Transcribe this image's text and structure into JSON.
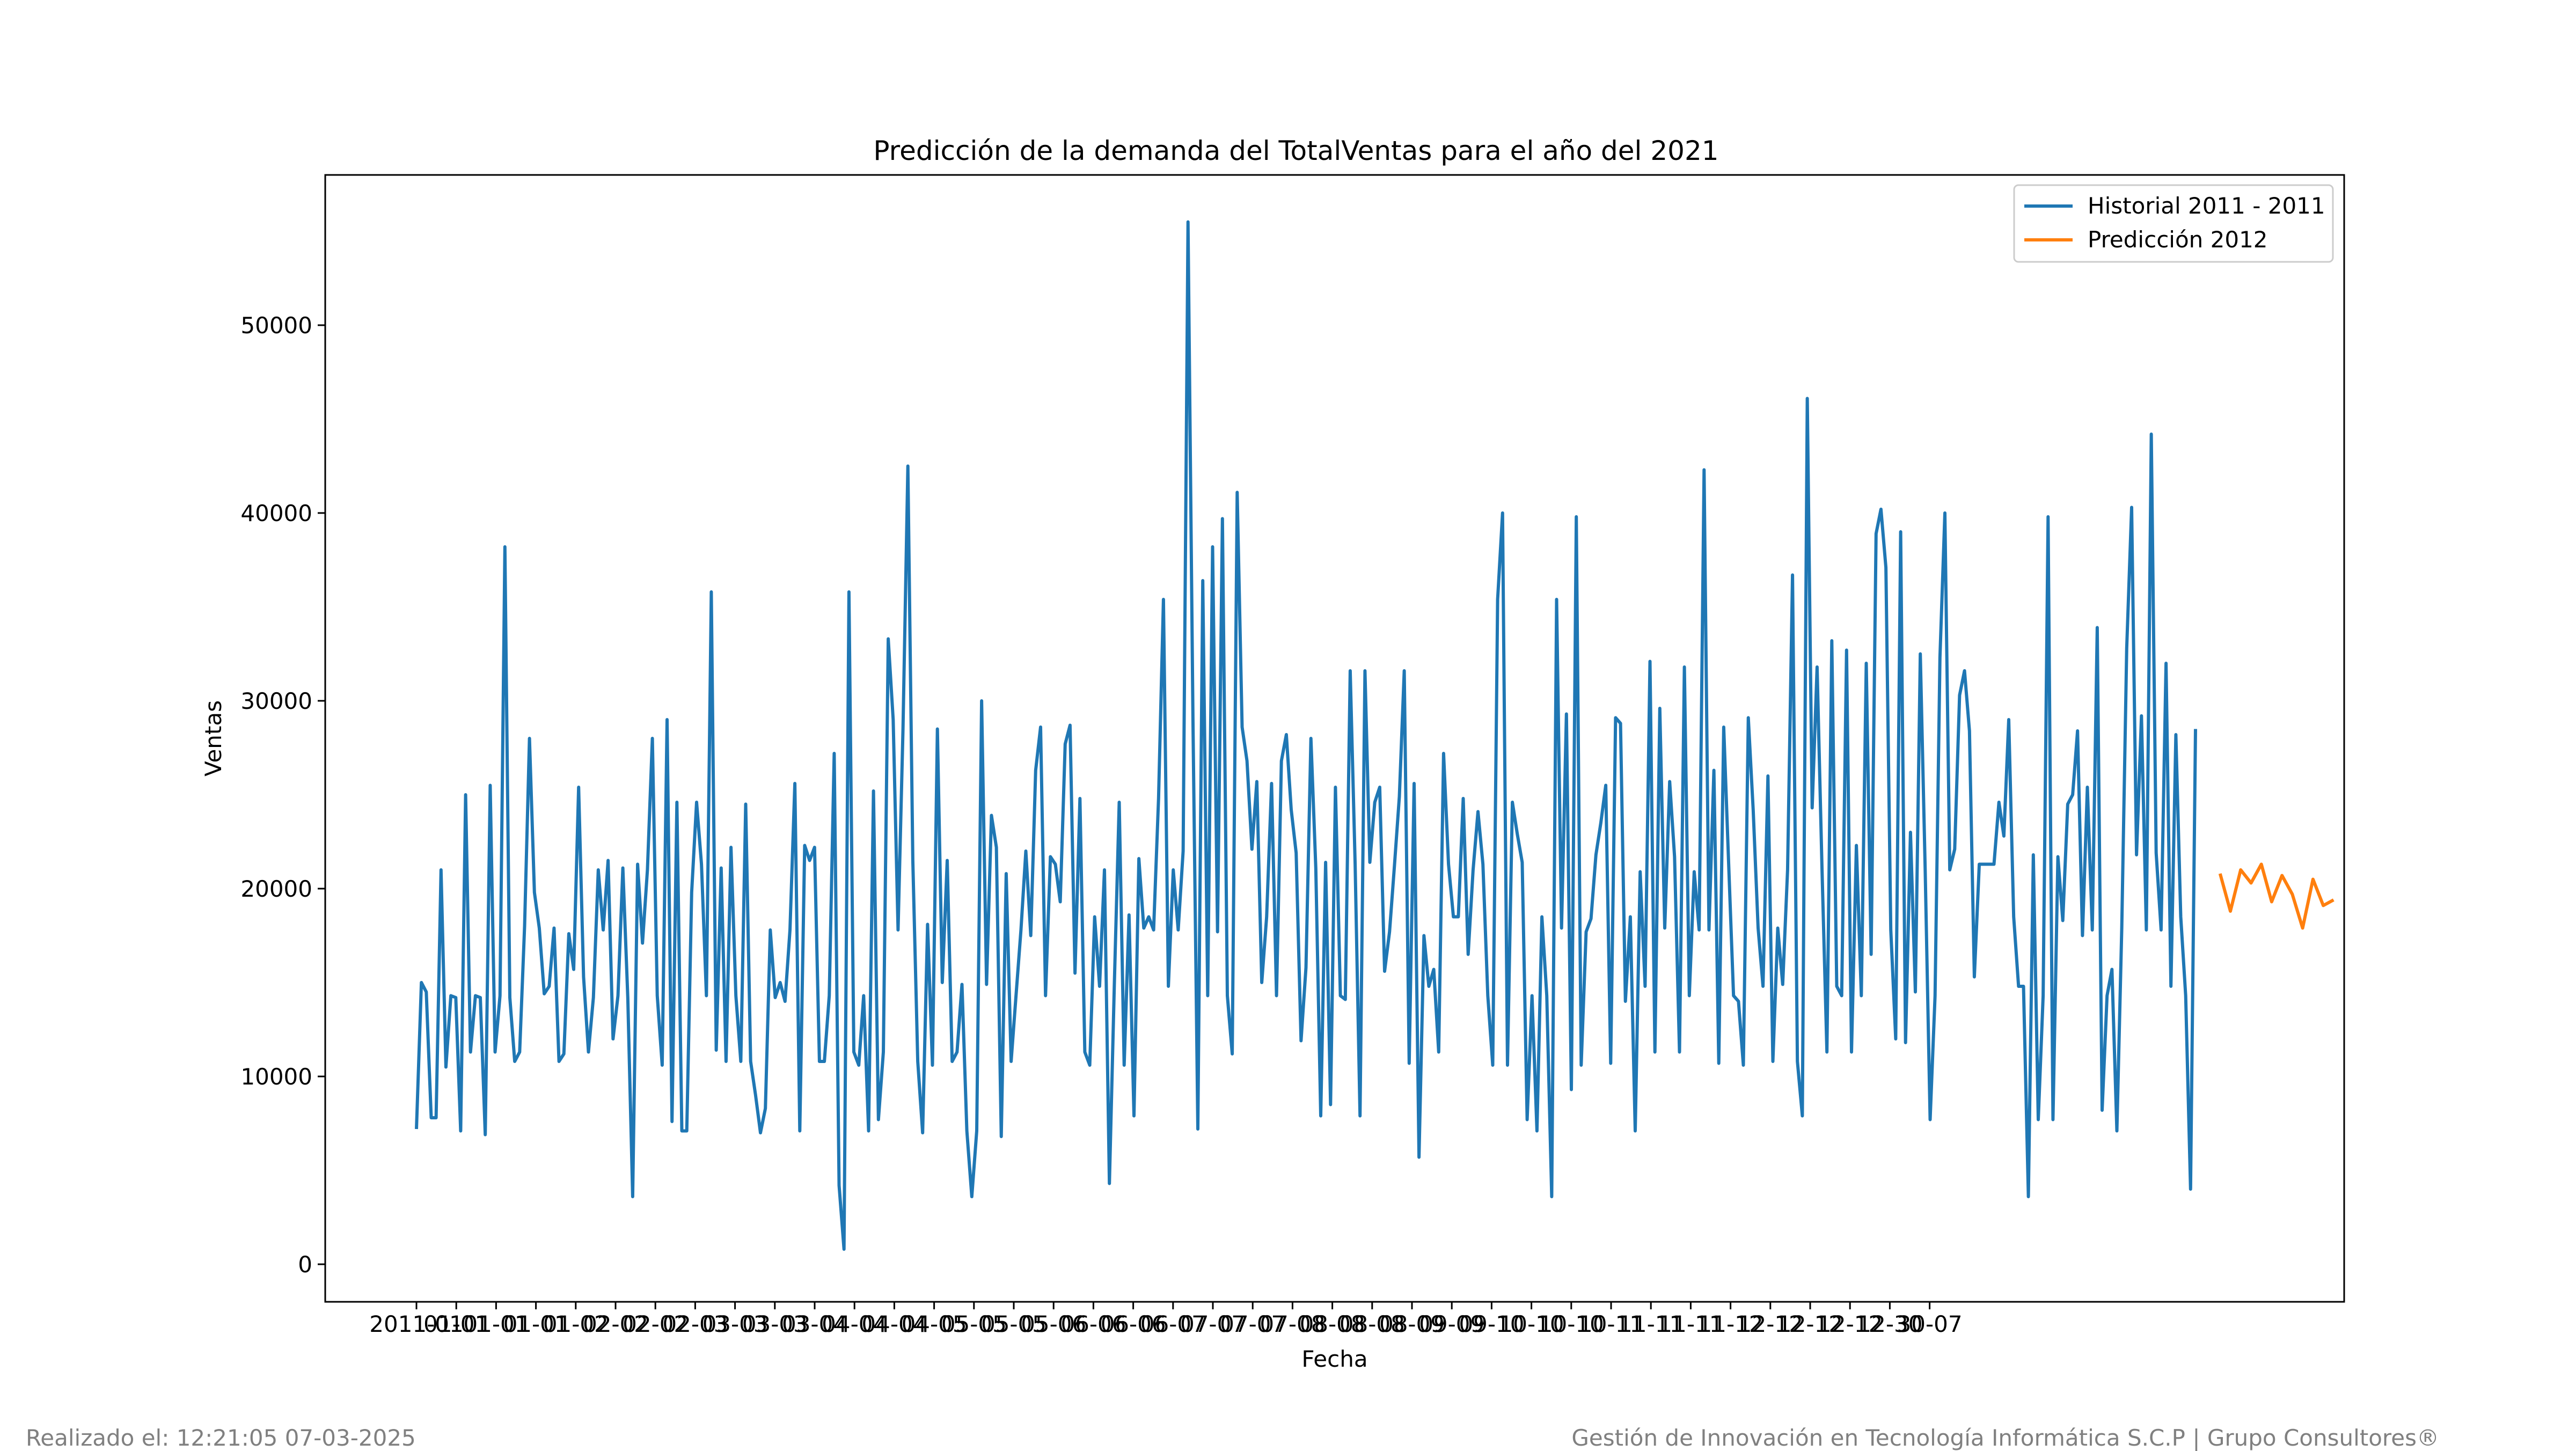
{
  "chart_data": {
    "type": "line",
    "title": "Predicción de la demanda del TotalVentas para el año del 2021",
    "xlabel": "Fecha",
    "ylabel": "Ventas",
    "ylim": [
      -2000,
      58000
    ],
    "yticks": [
      0,
      10000,
      20000,
      30000,
      40000,
      50000
    ],
    "xtick_labels": [
      "2011-01",
      "01-01",
      "01-01",
      "01-01",
      "01-02",
      "02-02",
      "02-02",
      "02-03",
      "03-03",
      "03-03",
      "03-04",
      "04-04",
      "04-04",
      "04-05",
      "05-05",
      "05-05",
      "05-06",
      "06-06",
      "06-06",
      "06-07",
      "07-07",
      "07-07",
      "07-08",
      "08-08",
      "08-08",
      "08-09",
      "09-09",
      "09-10",
      "10-10",
      "10-10",
      "10-11",
      "11-11",
      "11-11",
      "11-12",
      "12-12",
      "12-12",
      "12-12",
      "12-30",
      "30-07"
    ],
    "legend": {
      "placement": "upper-right"
    },
    "grid": false,
    "series": [
      {
        "name": "Historial 2011 - 2011",
        "color": "#1f77b4",
        "values": [
          7200,
          15000,
          14500,
          7800,
          7800,
          21000,
          10500,
          14300,
          14200,
          7100,
          25000,
          11300,
          14300,
          14200,
          6900,
          25500,
          11300,
          14300,
          38200,
          14200,
          10800,
          11300,
          18000,
          28000,
          19800,
          17900,
          14400,
          14800,
          17900,
          10800,
          11200,
          17600,
          15700,
          25400,
          15300,
          11300,
          14200,
          21000,
          17800,
          21500,
          12000,
          14300,
          21100,
          14200,
          3600,
          21300,
          17100,
          21000,
          28000,
          14300,
          10600,
          29000,
          7600,
          24600,
          7100,
          7100,
          19800,
          24600,
          21300,
          14300,
          35800,
          11400,
          21100,
          10800,
          22200,
          14300,
          10800,
          24500,
          10800,
          9000,
          7000,
          8300,
          17800,
          14200,
          15000,
          14000,
          17800,
          25600,
          7100,
          22300,
          21500,
          22200,
          10800,
          10800,
          14300,
          27200,
          4200,
          800,
          35800,
          11300,
          10600,
          14300,
          7100,
          25200,
          7700,
          11300,
          33300,
          29000,
          17800,
          28500,
          42500,
          21500,
          10800,
          7000,
          18100,
          10600,
          28500,
          15000,
          21500,
          10800,
          11300,
          14900,
          7100,
          3600,
          7100,
          30000,
          14900,
          23900,
          22200,
          6800,
          20800,
          10800,
          14300,
          17800,
          22000,
          17500,
          26300,
          28600,
          14300,
          21700,
          21300,
          19300,
          27700,
          28700,
          15500,
          24800,
          11300,
          10600,
          18500,
          14800,
          21000,
          4300,
          14900,
          24600,
          10600,
          18600,
          7900,
          21600,
          17900,
          18500,
          17800,
          24800,
          35400,
          14800,
          21000,
          17800,
          22000,
          55500,
          29000,
          7200,
          36400,
          14300,
          38200,
          17700,
          39700,
          14300,
          11200,
          41100,
          28600,
          26800,
          22100,
          25700,
          15000,
          18500,
          25600,
          14300,
          26800,
          28200,
          24200,
          21900,
          11900,
          15800,
          28000,
          21100,
          7900,
          21400,
          8500,
          25400,
          14300,
          14100,
          31600,
          21300,
          7900,
          31600,
          21400,
          24600,
          25400,
          15600,
          17700,
          21200,
          24900,
          31600,
          10700,
          25600,
          5700,
          17500,
          14800,
          15700,
          11300,
          27200,
          21300,
          18500,
          18500,
          24800,
          16500,
          21000,
          24100,
          21300,
          14300,
          10600,
          35400,
          40000,
          10600,
          24600,
          22900,
          21400,
          7700,
          14300,
          7100,
          18500,
          14300,
          3600,
          35400,
          17900,
          29300,
          9300,
          39800,
          10600,
          17700,
          18400,
          21800,
          23500,
          25500,
          10700,
          29100,
          28800,
          14000,
          18500,
          7100,
          20900,
          14800,
          32100,
          11300,
          29600,
          17900,
          25700,
          21700,
          11300,
          31800,
          14300,
          20900,
          17800,
          42300,
          17800,
          26300,
          10700,
          28600,
          21400,
          14300,
          14000,
          10600,
          29100,
          24200,
          17900,
          14800,
          26000,
          10800,
          17900,
          14900,
          21000,
          36700,
          10800,
          7900,
          46100,
          24300,
          31800,
          21100,
          11300,
          33200,
          14800,
          14300,
          32700,
          11300,
          22300,
          14300,
          32000,
          16500,
          38900,
          40200,
          37100,
          17800,
          12000,
          39000,
          11800,
          23000,
          14500,
          32500,
          21000,
          7700,
          14300,
          32300,
          40000,
          21000,
          22100,
          30300,
          31600,
          28400,
          15300,
          21300,
          21300,
          21300,
          21300,
          24600,
          22800,
          29000,
          18500,
          14800,
          14800,
          3600,
          21800,
          7700,
          14300,
          39800,
          7700,
          21700,
          18300,
          24500,
          25000,
          28400,
          17500,
          25400,
          17800,
          33900,
          8200,
          14300,
          15700,
          7100,
          17900,
          32800,
          40300,
          21800,
          29200,
          17800,
          44200,
          21900,
          17800,
          32000,
          14800,
          28200,
          18500,
          14300,
          4000,
          28500
        ]
      },
      {
        "name": "Predicción 2012",
        "color": "#ff7f0e",
        "values": [
          20800,
          18800,
          21000,
          20300,
          21300,
          19300,
          20700,
          19700,
          17900,
          20500,
          19100,
          19400
        ]
      }
    ]
  },
  "footer": {
    "left_text": "Realizado el: 12:21:05 07-03-2025",
    "right_text": "Gestión de Innovación en Tecnología Informática S.C.P | Grupo Consultores®"
  }
}
